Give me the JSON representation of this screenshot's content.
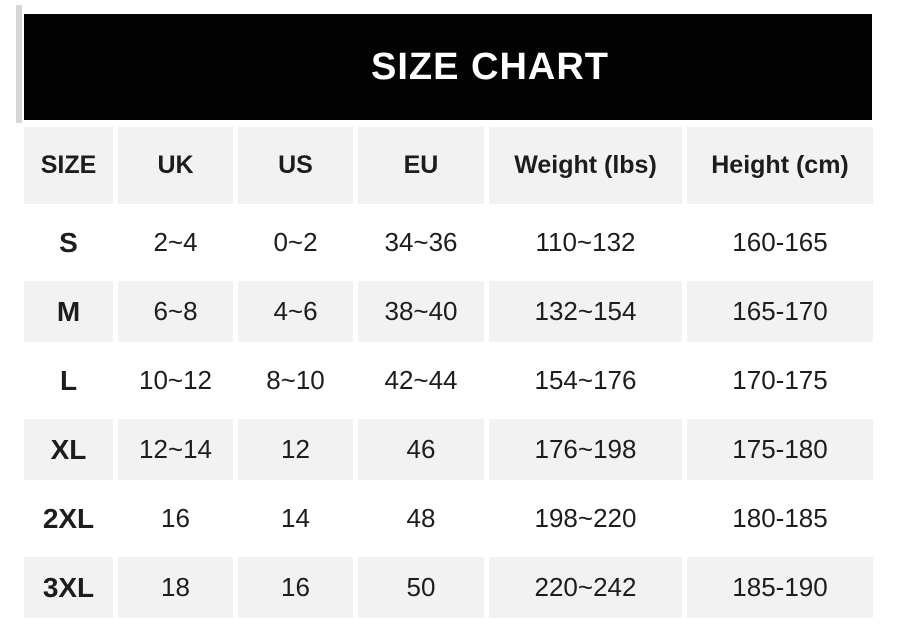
{
  "chart_data": {
    "type": "table",
    "title": "SIZE CHART",
    "columns": [
      "SIZE",
      "UK",
      "US",
      "EU",
      "Weight (lbs)",
      "Height (cm)"
    ],
    "rows": [
      [
        "S",
        "2~4",
        "0~2",
        "34~36",
        "110~132",
        "160-165"
      ],
      [
        "M",
        "6~8",
        "4~6",
        "38~40",
        "132~154",
        "165-170"
      ],
      [
        "L",
        "10~12",
        "8~10",
        "42~44",
        "154~176",
        "170-175"
      ],
      [
        "XL",
        "12~14",
        "12",
        "46",
        "176~198",
        "175-180"
      ],
      [
        "2XL",
        "16",
        "14",
        "48",
        "198~220",
        "180-185"
      ],
      [
        "3XL",
        "18",
        "16",
        "50",
        "220~242",
        "185-190"
      ]
    ],
    "layout": {
      "shaded_rows": [
        "header",
        "M",
        "XL",
        "3XL"
      ],
      "grid": "off",
      "legend": "none"
    }
  },
  "colors": {
    "banner_bg": "#030303",
    "banner_text": "#ffffff",
    "row_shade_bg": "#f2f2f2",
    "text_color": "#1d1d1d"
  }
}
